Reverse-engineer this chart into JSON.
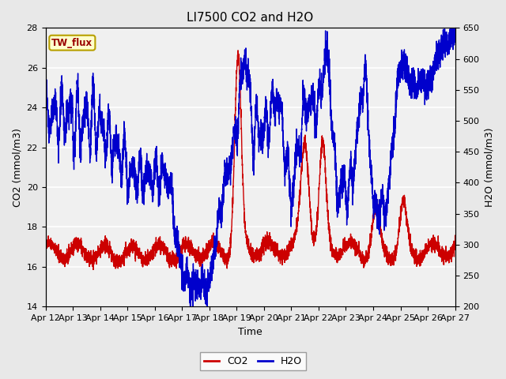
{
  "title": "LI7500 CO2 and H2O",
  "xlabel": "Time",
  "ylabel_left": "CO2 (mmol/m3)",
  "ylabel_right": "H2O (mmol/m3)",
  "xlim_days": [
    0,
    15
  ],
  "ylim_co2": [
    14,
    28
  ],
  "ylim_h2o": [
    200,
    650
  ],
  "yticks_co2": [
    14,
    16,
    18,
    20,
    22,
    24,
    26,
    28
  ],
  "yticks_h2o": [
    200,
    250,
    300,
    350,
    400,
    450,
    500,
    550,
    600,
    650
  ],
  "xtick_labels": [
    "Apr 12",
    "Apr 13",
    "Apr 14",
    "Apr 15",
    "Apr 16",
    "Apr 17",
    "Apr 18",
    "Apr 19",
    "Apr 20",
    "Apr 21",
    "Apr 22",
    "Apr 23",
    "Apr 24",
    "Apr 25",
    "Apr 26",
    "Apr 27"
  ],
  "co2_color": "#CC0000",
  "h2o_color": "#0000CC",
  "background_color": "#E8E8E8",
  "plot_bg_color": "#F0F0F0",
  "annotation_text": "TW_flux",
  "annotation_bg": "#FFFFCC",
  "annotation_border": "#B8A000",
  "annotation_fg": "#990000",
  "legend_co2": "CO2",
  "legend_h2o": "H2O",
  "title_fontsize": 11,
  "axis_fontsize": 9,
  "tick_fontsize": 8,
  "grid_color": "#FFFFFF",
  "line_width": 1.0
}
